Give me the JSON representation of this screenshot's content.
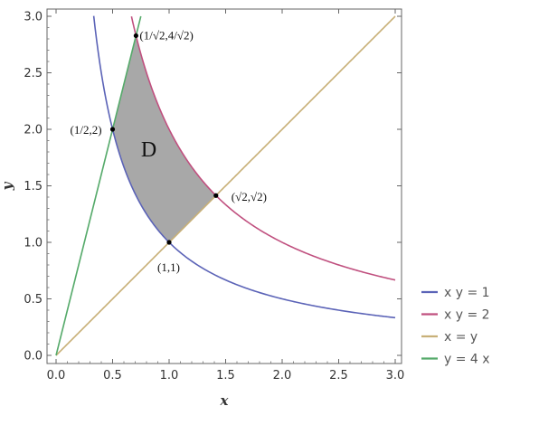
{
  "chart_data": {
    "type": "line",
    "xlabel": "x",
    "ylabel": "y",
    "xlim": [
      0,
      3
    ],
    "ylim": [
      0,
      3
    ],
    "xticks": [
      "0.0",
      "0.5",
      "1.0",
      "1.5",
      "2.0",
      "2.5",
      "3.0"
    ],
    "yticks": [
      "0.0",
      "0.5",
      "1.0",
      "1.5",
      "2.0",
      "2.5",
      "3.0"
    ],
    "grid": false,
    "legend_position": "right",
    "series": [
      {
        "name": "x y = 1",
        "equation": "y = 1/x",
        "color": "#5b63b7",
        "x_range": [
          0.333,
          3.0
        ]
      },
      {
        "name": "x y = 2",
        "equation": "y = 2/x",
        "color": "#c0507f",
        "x_range": [
          0.667,
          3.0
        ]
      },
      {
        "name": "x = y",
        "equation": "y = x",
        "color": "#c8b078",
        "x_range": [
          0.0,
          3.0
        ]
      },
      {
        "name": "y = 4 x",
        "equation": "y = 4x",
        "color": "#55aa6a",
        "x_range": [
          0.0,
          0.75
        ]
      }
    ],
    "region": {
      "label": "D",
      "color": "#a8a8a8",
      "label_at": [
        0.82,
        1.76
      ]
    },
    "points": [
      {
        "label": "(1/√2,4/√2)",
        "x": 0.7071,
        "y": 2.8284
      },
      {
        "label": "(1/2,2)",
        "x": 0.5,
        "y": 2.0
      },
      {
        "label": "(√2,√2)",
        "x": 1.4142,
        "y": 1.4142
      },
      {
        "label": "(1,1)",
        "x": 1.0,
        "y": 1.0
      }
    ]
  }
}
